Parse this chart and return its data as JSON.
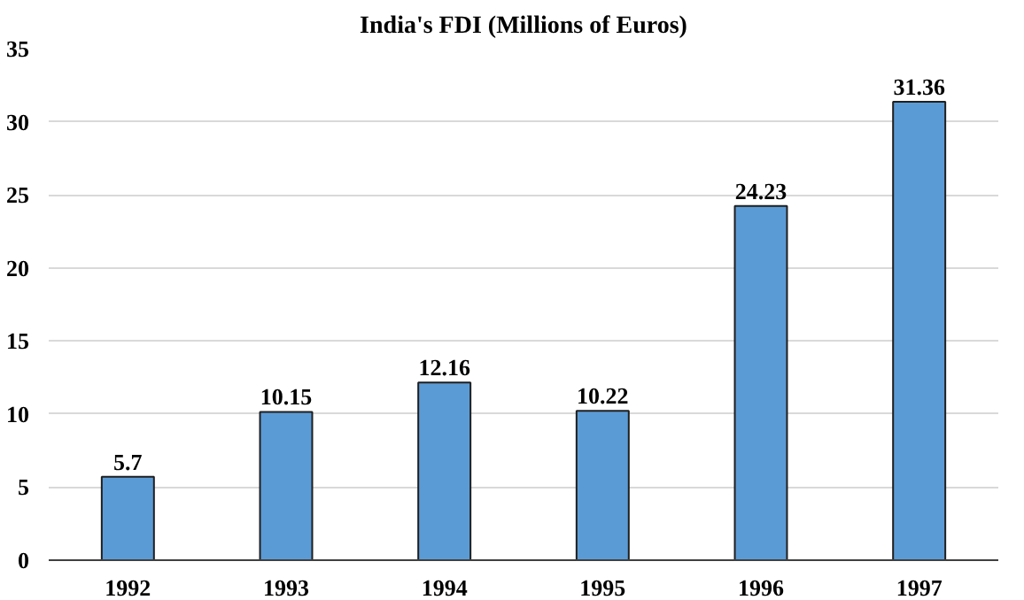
{
  "chart_data": {
    "type": "bar",
    "title": "India's FDI (Millions of Euros)",
    "categories": [
      "1992",
      "1993",
      "1994",
      "1995",
      "1996",
      "1997"
    ],
    "values": [
      5.7,
      10.15,
      12.16,
      10.22,
      24.23,
      31.36
    ],
    "color": "#5b9bd5",
    "ylim": [
      0,
      35
    ],
    "yticks": [
      0,
      5,
      10,
      15,
      20,
      25,
      30,
      35
    ],
    "grid": "y",
    "data_labels": true
  }
}
